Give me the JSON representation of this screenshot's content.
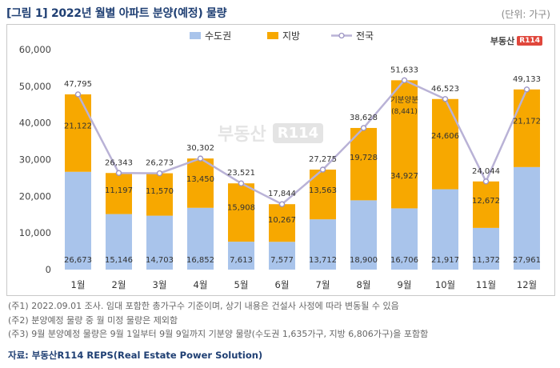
{
  "header": {
    "title": "[그림 1] 2022년 월별 아파트 분양(예정) 물량",
    "unit": "(단위: 가구)"
  },
  "brand": {
    "text": "부동산",
    "box": "R114"
  },
  "watermark": {
    "text": "부동산",
    "box": "R114"
  },
  "colors": {
    "capital": "#a9c4eb",
    "region": "#f7a800",
    "national": "#b9b2d6",
    "national_marker": "#ffffff"
  },
  "chart_data": {
    "type": "bar",
    "stacked": true,
    "categories": [
      "1월",
      "2월",
      "3월",
      "4월",
      "5월",
      "6월",
      "7월",
      "8월",
      "9월",
      "10월",
      "11월",
      "12월"
    ],
    "series": [
      {
        "name": "수도권",
        "values": [
          26673,
          15146,
          14703,
          16852,
          7613,
          7577,
          13712,
          18900,
          16706,
          21917,
          11372,
          27961
        ]
      },
      {
        "name": "지방",
        "values": [
          21122,
          11197,
          11570,
          13450,
          15908,
          10267,
          13563,
          19728,
          34927,
          24606,
          12672,
          21172
        ]
      },
      {
        "name": "전국",
        "type": "line",
        "values": [
          47795,
          26343,
          26273,
          30302,
          23521,
          17844,
          27275,
          38628,
          51633,
          46523,
          24044,
          49133
        ]
      }
    ],
    "capital_labels": [
      "26,673",
      "15,146",
      "14,703",
      "16,852",
      "7,613",
      "7,577",
      "13,712",
      "18,900",
      "16,706",
      "21,917",
      "11,372",
      "27,961"
    ],
    "region_labels": [
      "21,122",
      "11,197",
      "11,570",
      "13,450",
      "15,908",
      "10,267",
      "13,563",
      "19,728",
      "34,927",
      "24,606",
      "12,672",
      "21,172"
    ],
    "total_labels": [
      "47,795",
      "26,343",
      "26,273",
      "30,302",
      "23,521",
      "17,844",
      "27,275",
      "38,628",
      "51,633",
      "46,523",
      "24,044",
      "49,133"
    ],
    "y_ticks": [
      0,
      10000,
      20000,
      30000,
      40000,
      50000,
      60000
    ],
    "y_tick_labels": [
      "0",
      "10,000",
      "20,000",
      "30,000",
      "40,000",
      "50,000",
      "60,000"
    ],
    "ylim": [
      0,
      60000
    ],
    "legend": [
      "수도권",
      "지방",
      "전국"
    ],
    "legend_position": "top",
    "annotation": {
      "category": "9월",
      "text": "기분양분",
      "value_text": "(8,441)"
    },
    "grid": false
  },
  "notes": [
    "(주1) 2022.09.01 조사. 임대 포함한 총가구수 기준이며, 상기 내용은 건설사 사정에 따라 변동될 수 있음",
    "(주2) 분양예정 물량 중 월 미정 물량은 제외함",
    "(주3) 9월 분양예정 물량은 9월 1일부터 9월 9일까지 기분양 물량(수도권 1,635가구, 지방 6,806가구)을 포함함"
  ],
  "source": "자료: 부동산R114 REPS(Real Estate Power Solution)"
}
